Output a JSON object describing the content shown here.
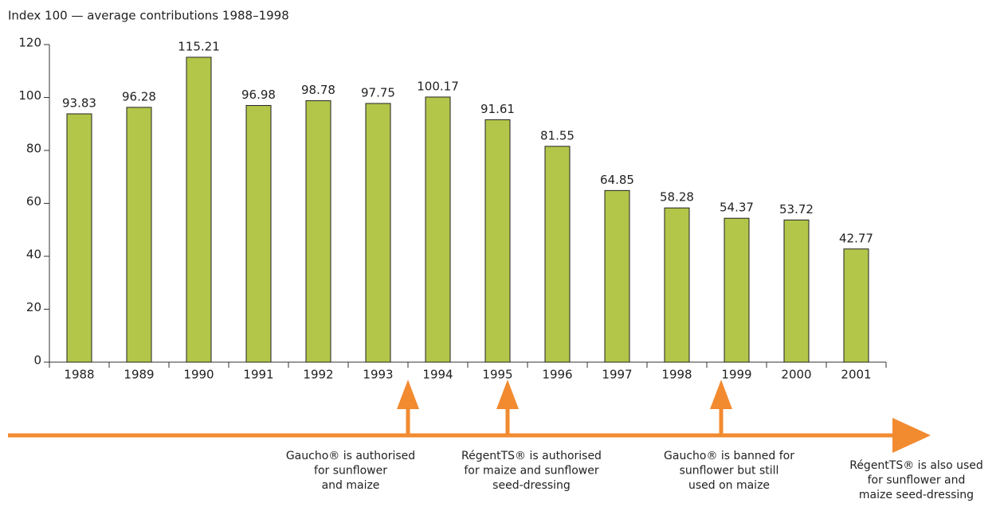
{
  "chart_data": {
    "type": "bar",
    "y_axis_label": "Index 100 — average contributions 1988–1998",
    "categories": [
      "1988",
      "1989",
      "1990",
      "1991",
      "1992",
      "1993",
      "1994",
      "1995",
      "1996",
      "1997",
      "1998",
      "1999",
      "2000",
      "2001"
    ],
    "values": [
      93.83,
      96.28,
      115.21,
      96.98,
      98.78,
      97.75,
      100.17,
      91.61,
      81.55,
      64.85,
      58.28,
      54.37,
      53.72,
      42.77
    ],
    "color": "#b3c64a",
    "ylim": [
      0,
      120
    ],
    "yticks": [
      0,
      20,
      40,
      60,
      80,
      100,
      120
    ],
    "annotations": [
      {
        "lines": [
          "Gaucho® is authorised",
          "for sunflower",
          "and maize"
        ]
      },
      {
        "lines": [
          "RégentTS® is authorised",
          "for maize and sunflower",
          "seed-dressing"
        ]
      },
      {
        "lines": [
          "Gaucho® is  banned for",
          "sunflower but still",
          "used on maize"
        ]
      },
      {
        "lines": [
          "RégentTS® is also used",
          "for sunflower and",
          "maize seed-dressing"
        ]
      }
    ]
  }
}
